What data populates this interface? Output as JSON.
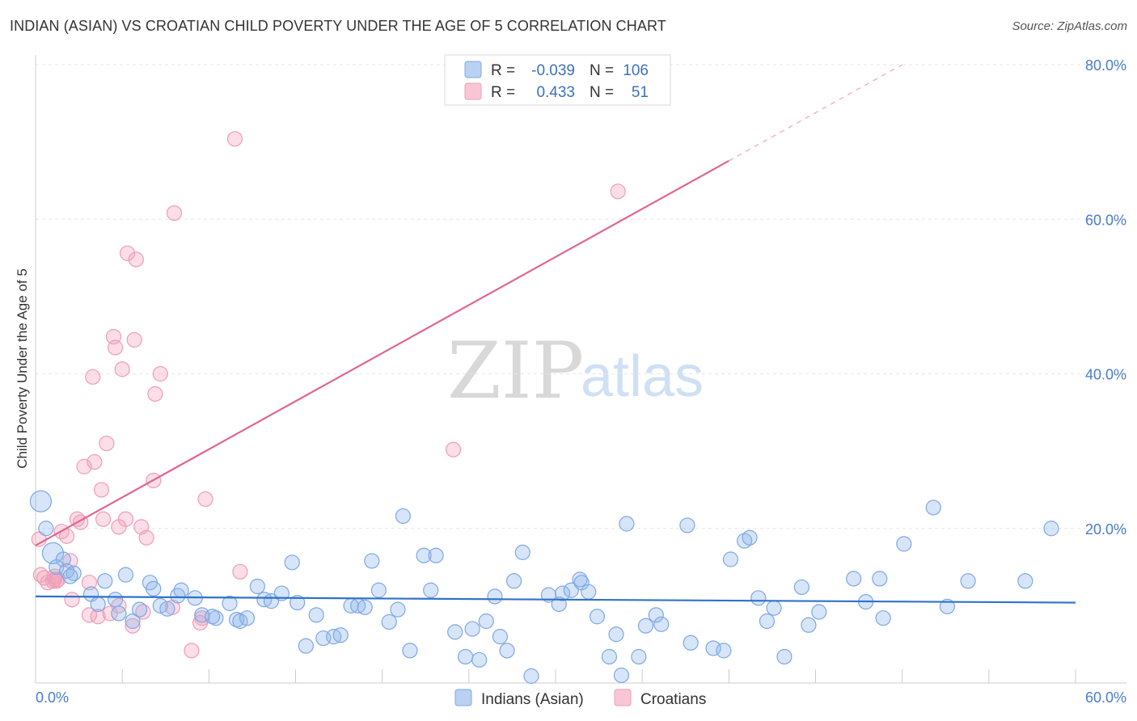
{
  "title": "INDIAN (ASIAN) VS CROATIAN CHILD POVERTY UNDER THE AGE OF 5 CORRELATION CHART",
  "source": "Source: ZipAtlas.com",
  "watermark": {
    "zip": "ZIP",
    "atlas": "atlas"
  },
  "colors": {
    "blue": "#6f9fe0",
    "blue_line": "#2f73c7",
    "pink": "#f19bb6",
    "pink_line": "#e06690",
    "tick": "#4a7cc9"
  },
  "chart_data": {
    "type": "scatter",
    "xlabel": "",
    "ylabel": "Child Poverty Under the Age of 5",
    "xlim": [
      0,
      60
    ],
    "ylim": [
      0,
      80
    ],
    "x_ticks": [
      "0.0%",
      "60.0%"
    ],
    "y_ticks": [
      {
        "value": 80,
        "label": "80.0%"
      },
      {
        "value": 60,
        "label": "60.0%"
      },
      {
        "value": 40,
        "label": "40.0%"
      },
      {
        "value": 20,
        "label": "20.0%"
      }
    ],
    "legend": {
      "rows": [
        {
          "r_label": "R =",
          "r": "-0.039",
          "n_label": "N =",
          "n": "106"
        },
        {
          "r_label": "R =",
          "r": "0.433",
          "n_label": "N =",
          "n": "51"
        }
      ]
    },
    "series": [
      {
        "name": "Indians (Asian)",
        "trend": {
          "x0": 0,
          "y0": 11.2,
          "x1": 60,
          "y1": 10.4,
          "dash_from": null
        },
        "points": [
          [
            0.3,
            23.5
          ],
          [
            0.6,
            20
          ],
          [
            1.0,
            16.8
          ],
          [
            1.6,
            16
          ],
          [
            1.2,
            15
          ],
          [
            1.8,
            14.5
          ],
          [
            2.2,
            14.2
          ],
          [
            2.0,
            13.8
          ],
          [
            3.2,
            11.5
          ],
          [
            4.0,
            13.2
          ],
          [
            4.6,
            10.8
          ],
          [
            5.2,
            14
          ],
          [
            3.6,
            10.2
          ],
          [
            4.8,
            9.0
          ],
          [
            5.6,
            8.0
          ],
          [
            6.0,
            9.5
          ],
          [
            6.6,
            13
          ],
          [
            6.8,
            12.2
          ],
          [
            7.2,
            10
          ],
          [
            7.6,
            9.6
          ],
          [
            8.2,
            11.3
          ],
          [
            8.4,
            12
          ],
          [
            9.2,
            11
          ],
          [
            9.6,
            8.8
          ],
          [
            10.4,
            8.4
          ],
          [
            10.2,
            8.6
          ],
          [
            11.2,
            10.3
          ],
          [
            11.6,
            8.2
          ],
          [
            11.8,
            8.0
          ],
          [
            12.2,
            8.4
          ],
          [
            12.8,
            12.5
          ],
          [
            13.2,
            10.8
          ],
          [
            13.6,
            10.6
          ],
          [
            14.2,
            11.6
          ],
          [
            14.8,
            15.6
          ],
          [
            15.1,
            10.4
          ],
          [
            15.6,
            4.8
          ],
          [
            16.2,
            8.8
          ],
          [
            16.6,
            5.8
          ],
          [
            17.2,
            6.0
          ],
          [
            17.6,
            6.2
          ],
          [
            18.2,
            10
          ],
          [
            18.6,
            10
          ],
          [
            19.0,
            9.8
          ],
          [
            19.4,
            15.8
          ],
          [
            19.8,
            12
          ],
          [
            20.4,
            7.9
          ],
          [
            20.9,
            9.5
          ],
          [
            21.2,
            21.6
          ],
          [
            21.6,
            4.2
          ],
          [
            22.4,
            16.5
          ],
          [
            23.1,
            16.5
          ],
          [
            22.8,
            12
          ],
          [
            24.2,
            6.6
          ],
          [
            24.8,
            3.4
          ],
          [
            25.2,
            7
          ],
          [
            25.6,
            3.0
          ],
          [
            26.0,
            8.0
          ],
          [
            26.5,
            11.2
          ],
          [
            26.8,
            6.0
          ],
          [
            27.2,
            4.2
          ],
          [
            27.6,
            13.2
          ],
          [
            28.1,
            16.9
          ],
          [
            28.6,
            0.9
          ],
          [
            29.6,
            11.4
          ],
          [
            30.2,
            10.2
          ],
          [
            30.4,
            11.6
          ],
          [
            30.9,
            12
          ],
          [
            31.4,
            13.4
          ],
          [
            31.5,
            13.0
          ],
          [
            31.9,
            11.8
          ],
          [
            32.4,
            8.6
          ],
          [
            33.1,
            3.4
          ],
          [
            33.5,
            6.3
          ],
          [
            33.8,
            1.0
          ],
          [
            34.1,
            20.6
          ],
          [
            34.8,
            3.4
          ],
          [
            35.2,
            7.4
          ],
          [
            35.8,
            8.8
          ],
          [
            36.1,
            7.6
          ],
          [
            37.6,
            20.4
          ],
          [
            37.8,
            5.2
          ],
          [
            39.1,
            4.5
          ],
          [
            39.7,
            4.2
          ],
          [
            40.1,
            16
          ],
          [
            40.9,
            18.4
          ],
          [
            41.2,
            18.8
          ],
          [
            41.7,
            11
          ],
          [
            42.2,
            8
          ],
          [
            42.6,
            9.7
          ],
          [
            43.2,
            3.4
          ],
          [
            44.2,
            12.4
          ],
          [
            44.6,
            7.5
          ],
          [
            45.2,
            9.2
          ],
          [
            47.2,
            13.5
          ],
          [
            47.9,
            10.5
          ],
          [
            48.7,
            13.5
          ],
          [
            48.9,
            8.4
          ],
          [
            50.1,
            18
          ],
          [
            51.8,
            22.7
          ],
          [
            52.6,
            9.9
          ],
          [
            53.8,
            13.2
          ],
          [
            57.1,
            13.2
          ],
          [
            58.6,
            20
          ]
        ],
        "big_points": [
          [
            0.3,
            23.5
          ],
          [
            0.6,
            19.6
          ],
          [
            1.0,
            16.8
          ]
        ]
      },
      {
        "name": "Croatians",
        "trend": {
          "x0": 0,
          "y0": 17.8,
          "x1": 50,
          "y1": 80,
          "dash_from": 40
        },
        "points": [
          [
            0.2,
            18.6
          ],
          [
            0.3,
            14
          ],
          [
            0.5,
            13.6
          ],
          [
            0.7,
            13
          ],
          [
            1.0,
            13.2
          ],
          [
            1.1,
            13.4
          ],
          [
            1.2,
            13.2
          ],
          [
            1.3,
            13.4
          ],
          [
            1.5,
            19.6
          ],
          [
            1.8,
            19
          ],
          [
            2.0,
            15.8
          ],
          [
            2.1,
            10.8
          ],
          [
            2.4,
            21.2
          ],
          [
            2.6,
            20.8
          ],
          [
            2.8,
            28
          ],
          [
            3.1,
            13
          ],
          [
            3.1,
            8.8
          ],
          [
            3.3,
            39.6
          ],
          [
            3.4,
            28.6
          ],
          [
            3.6,
            8.6
          ],
          [
            3.8,
            25
          ],
          [
            3.9,
            21.2
          ],
          [
            4.1,
            31
          ],
          [
            4.3,
            9
          ],
          [
            4.5,
            44.8
          ],
          [
            4.6,
            43.4
          ],
          [
            4.8,
            10
          ],
          [
            4.8,
            20.2
          ],
          [
            5.0,
            40.6
          ],
          [
            5.2,
            21.2
          ],
          [
            5.3,
            55.6
          ],
          [
            5.6,
            7.4
          ],
          [
            5.7,
            44.4
          ],
          [
            5.8,
            54.8
          ],
          [
            6.1,
            20.2
          ],
          [
            6.2,
            9.2
          ],
          [
            6.4,
            18.8
          ],
          [
            6.8,
            26.2
          ],
          [
            6.9,
            37.4
          ],
          [
            7.2,
            40
          ],
          [
            7.9,
            9.8
          ],
          [
            8.0,
            60.8
          ],
          [
            9.0,
            4.2
          ],
          [
            9.5,
            7.8
          ],
          [
            9.6,
            8.4
          ],
          [
            9.8,
            23.8
          ],
          [
            11.5,
            70.4
          ],
          [
            11.8,
            14.4
          ],
          [
            24.1,
            30.2
          ],
          [
            33.6,
            63.6
          ],
          [
            1.1,
            13.8
          ]
        ],
        "big_points": []
      }
    ]
  },
  "bottom_legend": [
    "Indians (Asian)",
    "Croatians"
  ]
}
